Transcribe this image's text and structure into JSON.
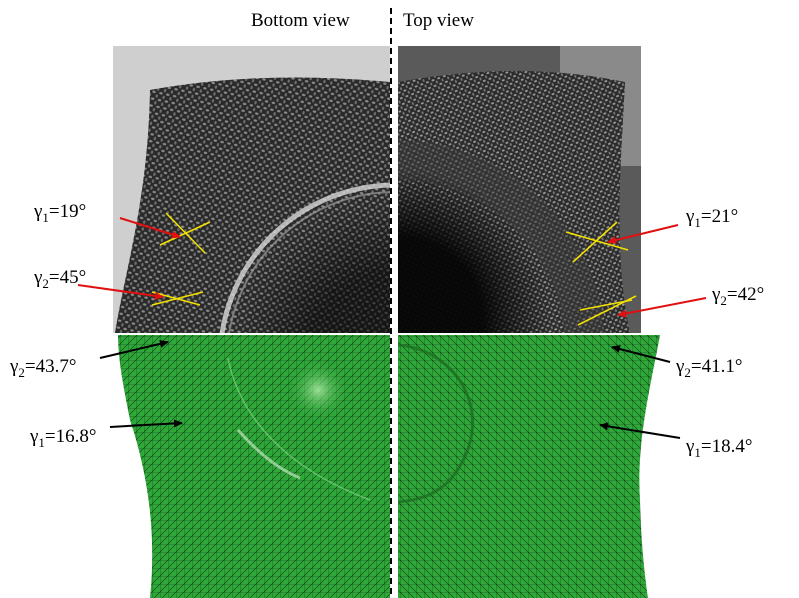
{
  "headers": {
    "left": "Bottom view",
    "right": "Top view"
  },
  "symbol": "γ",
  "photo_annotations": {
    "left_gamma1": {
      "sub": "1",
      "value": "=19°"
    },
    "left_gamma2": {
      "sub": "2",
      "value": "=45°"
    },
    "right_gamma1": {
      "sub": "1",
      "value": "=21°"
    },
    "right_gamma2": {
      "sub": "2",
      "value": "=42°"
    }
  },
  "simulation_annotations": {
    "left_gamma2": {
      "sub": "2",
      "value": "=43.7°"
    },
    "left_gamma1": {
      "sub": "1",
      "value": "=16.8°"
    },
    "right_gamma2": {
      "sub": "2",
      "value": "=41.1°"
    },
    "right_gamma1": {
      "sub": "1",
      "value": "=18.4°"
    }
  },
  "colors": {
    "mesh_fill": "#2fa83a",
    "mesh_line": "#0f3a12",
    "photo_arrow": "#e01010",
    "sim_arrow": "#000000",
    "measure_line": "#f2e100"
  }
}
